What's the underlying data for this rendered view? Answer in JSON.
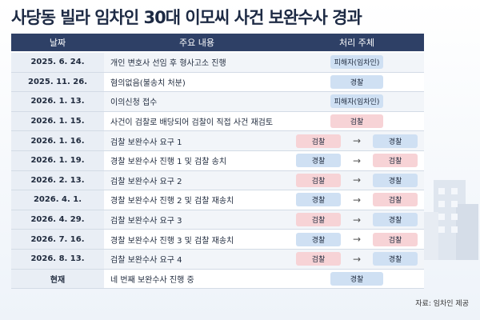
{
  "title": "사당동 빌라 임차인 30대 이모씨 사건 보완수사 경과",
  "table": {
    "header": [
      "날짜",
      "주요 내용",
      "처리 주체"
    ],
    "rows": [
      {
        "date": "2025. 6. 24.",
        "content": "개인 변호사 선임 후 형사고소 진행",
        "actors": [
          {
            "label": "피해자(임차인)",
            "color": "#cfe0f3"
          }
        ]
      },
      {
        "date": "2025. 11. 26.",
        "content": "혐의없음(불송치 처분)",
        "actors": [
          {
            "label": "경찰",
            "color": "#cfe0f3"
          }
        ]
      },
      {
        "date": "2026. 1. 13.",
        "content": "이의신청 접수",
        "actors": [
          {
            "label": "피해자(임차인)",
            "color": "#cfe0f3"
          }
        ]
      },
      {
        "date": "2026. 1. 15.",
        "content": "사건이 검찰로 배당되어 검찰이 직접 사건 재검토",
        "actors": [
          {
            "label": "검찰",
            "color": "#f7d3d6"
          }
        ]
      },
      {
        "date": "2026. 1. 16.",
        "content": "검찰 보완수사 요구 1",
        "actors": [
          {
            "label": "검찰",
            "color": "#f7d3d6"
          },
          {
            "label": "경찰",
            "color": "#cfe0f3"
          }
        ]
      },
      {
        "date": "2026. 1. 19.",
        "content": "경찰 보완수사 진행 1 및 검찰 송치",
        "actors": [
          {
            "label": "경찰",
            "color": "#cfe0f3"
          },
          {
            "label": "검찰",
            "color": "#f7d3d6"
          }
        ]
      },
      {
        "date": "2026. 2. 13.",
        "content": "검찰 보완수사 요구 2",
        "actors": [
          {
            "label": "검찰",
            "color": "#f7d3d6"
          },
          {
            "label": "경찰",
            "color": "#cfe0f3"
          }
        ]
      },
      {
        "date": "2026. 4. 1.",
        "content": "경찰 보완수사 진행 2 및 검찰 재송치",
        "actors": [
          {
            "label": "경찰",
            "color": "#cfe0f3"
          },
          {
            "label": "검찰",
            "color": "#f7d3d6"
          }
        ]
      },
      {
        "date": "2026. 4. 29.",
        "content": "검찰 보완수사 요구 3",
        "actors": [
          {
            "label": "검찰",
            "color": "#f7d3d6"
          },
          {
            "label": "경찰",
            "color": "#cfe0f3"
          }
        ]
      },
      {
        "date": "2026. 7. 16.",
        "content": "경찰 보완수사 진행 3 및 검찰 재송치",
        "actors": [
          {
            "label": "경찰",
            "color": "#cfe0f3"
          },
          {
            "label": "검찰",
            "color": "#f7d3d6"
          }
        ]
      },
      {
        "date": "2026. 8. 13.",
        "content": "검찰 보완수사 요구 4",
        "actors": [
          {
            "label": "검찰",
            "color": "#f7d3d6"
          },
          {
            "label": "경찰",
            "color": "#cfe0f3"
          }
        ]
      },
      {
        "date": "현재",
        "content": "네 번째 보완수사 진행 중",
        "actors": [
          {
            "label": "경찰",
            "color": "#cfe0f3"
          }
        ]
      }
    ]
  },
  "source": "자료: 임차인 제공"
}
